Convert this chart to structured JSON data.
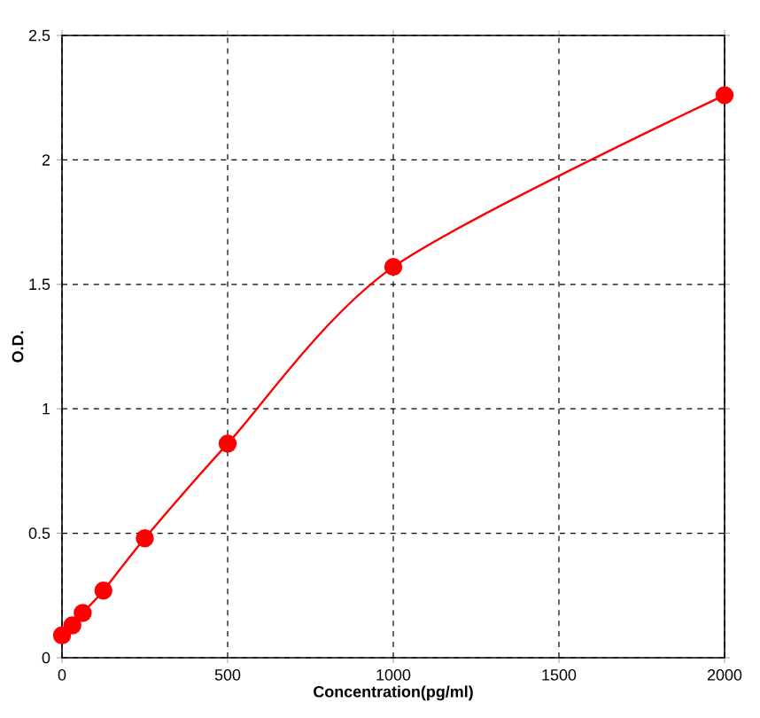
{
  "chart_data": {
    "type": "line",
    "xlabel": "Concentration(pg/ml)",
    "ylabel": "O.D.",
    "x": [
      0,
      31.25,
      62.5,
      125,
      250,
      500,
      1000,
      2000
    ],
    "series": [
      {
        "color": "#ff0000",
        "values": [
          0.09,
          0.13,
          0.18,
          0.27,
          0.48,
          0.86,
          1.57,
          2.26
        ]
      }
    ],
    "xlim": [
      0,
      2000
    ],
    "ylim": [
      0,
      2.5
    ],
    "xticks": [
      0,
      500,
      1000,
      1500,
      2000
    ],
    "yticks": [
      0,
      0.5,
      1,
      1.5,
      2,
      2.5
    ],
    "grid": true,
    "marker": "circle",
    "line_style": "solid"
  }
}
